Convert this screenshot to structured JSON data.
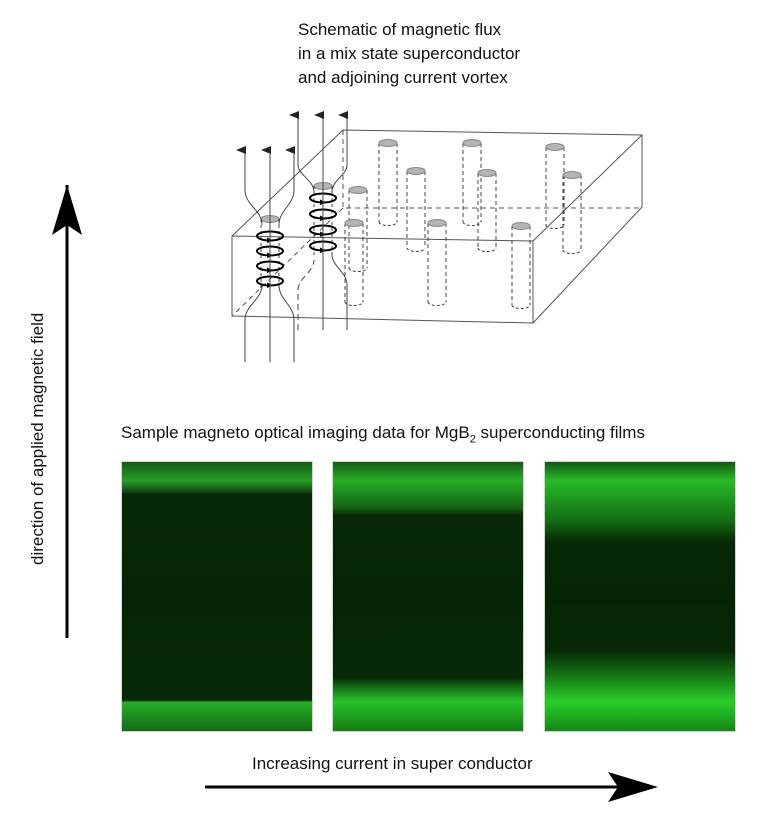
{
  "schematic": {
    "title_lines": [
      "Schematic of magnetic flux",
      "in a mix state superconductor",
      "and adjoining current vortex"
    ]
  },
  "imaging": {
    "title_prefix": "Sample magneto optical imaging data for MgB",
    "title_subscript": "2",
    "title_suffix": " superconducting films",
    "panels": [
      {
        "flux_penetration": 0.1
      },
      {
        "flux_penetration": 0.4
      },
      {
        "flux_penetration": 0.6
      }
    ],
    "color": "#22dd22"
  },
  "axes": {
    "vertical_label": "direction of applied magnetic field",
    "horizontal_label": "Increasing current in super conductor"
  }
}
